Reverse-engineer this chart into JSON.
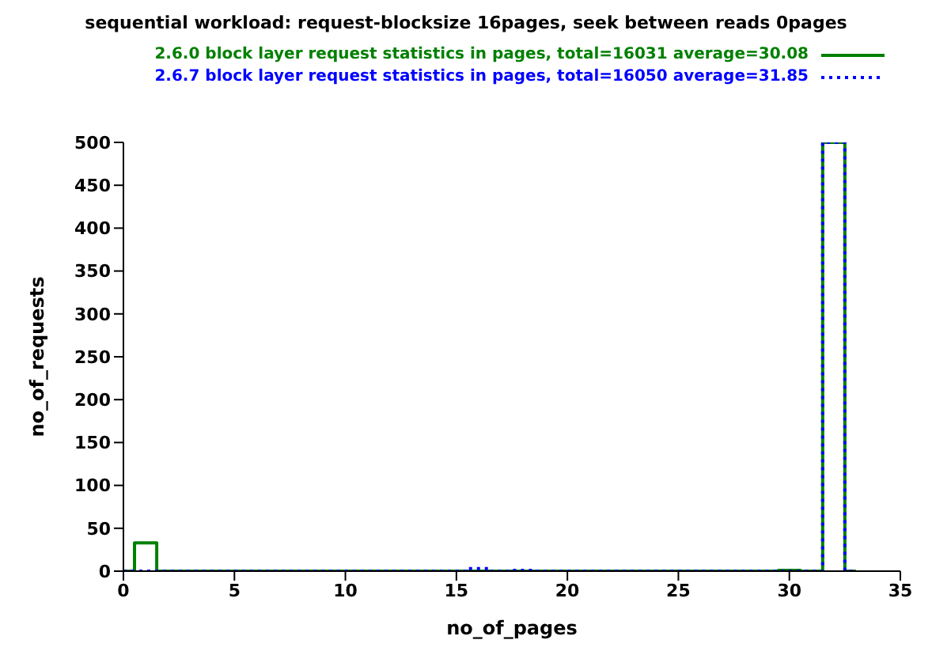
{
  "chart_data": {
    "type": "step",
    "title": "sequential workload: request-blocksize 16pages, seek between reads 0pages",
    "xlabel": "no_of_pages",
    "ylabel": "no_of_requests",
    "x": [
      0,
      1,
      2,
      3,
      4,
      5,
      6,
      7,
      8,
      9,
      10,
      11,
      12,
      13,
      14,
      15,
      16,
      17,
      18,
      19,
      20,
      21,
      22,
      23,
      24,
      25,
      26,
      27,
      28,
      29,
      30,
      31,
      32,
      33
    ],
    "series": [
      {
        "name": "2.6.0 block layer request statistics in pages, total=16031 average=30.08",
        "color": "#008000",
        "line_style": "solid",
        "values": [
          0,
          33,
          0,
          0,
          0,
          0,
          0,
          0,
          0,
          0,
          0,
          0,
          0,
          0,
          0,
          0,
          0,
          0,
          0,
          0,
          0,
          0,
          0,
          0,
          0,
          0,
          0,
          0,
          0,
          0,
          1,
          0,
          500,
          0
        ]
      },
      {
        "name": "2.6.7 block layer request statistics in pages, total=16050 average=31.85",
        "color": "#0000ff",
        "line_style": "dotted",
        "values": [
          0,
          0,
          0,
          0,
          0,
          0,
          0,
          0,
          0,
          0,
          0,
          0,
          0,
          0,
          0,
          0,
          3,
          0,
          1,
          0,
          0,
          0,
          0,
          0,
          0,
          0,
          0,
          0,
          0,
          0,
          0,
          0,
          500,
          0
        ]
      }
    ],
    "xlim": [
      0,
      35
    ],
    "xticks": [
      0,
      5,
      10,
      15,
      20,
      25,
      30,
      35
    ],
    "ylim": [
      0,
      500
    ],
    "yticks": [
      0,
      50,
      100,
      150,
      200,
      250,
      300,
      350,
      400,
      450,
      500
    ],
    "grid": false,
    "legend": "top right"
  }
}
